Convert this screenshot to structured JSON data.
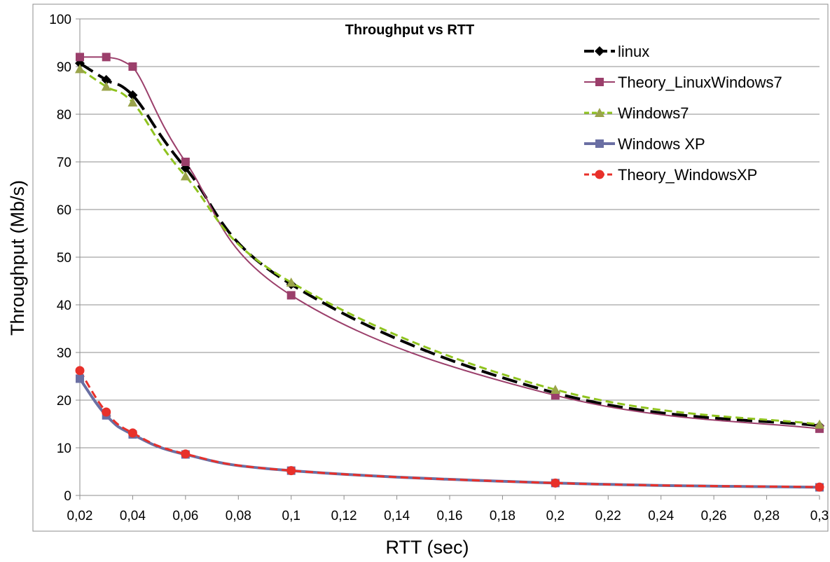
{
  "chart_data": {
    "type": "line",
    "title": "Throughput vs RTT",
    "xlabel": "RTT (sec)",
    "ylabel": "Throughput (Mb/s)",
    "xlim": [
      0.02,
      0.3
    ],
    "ylim": [
      0,
      100
    ],
    "x_ticks": [
      0.02,
      0.04,
      0.06,
      0.08,
      0.1,
      0.12,
      0.14,
      0.16,
      0.18,
      0.2,
      0.22,
      0.24,
      0.26,
      0.28,
      0.3
    ],
    "x_tick_labels": [
      "0,02",
      "0,04",
      "0,06",
      "0,08",
      "0,1",
      "0,12",
      "0,14",
      "0,16",
      "0,18",
      "0,2",
      "0,22",
      "0,24",
      "0,26",
      "0,28",
      "0,3"
    ],
    "y_ticks": [
      0,
      10,
      20,
      30,
      40,
      50,
      60,
      70,
      80,
      90,
      100
    ],
    "y_tick_labels": [
      "0",
      "10",
      "20",
      "30",
      "40",
      "50",
      "60",
      "70",
      "80",
      "90",
      "100"
    ],
    "grid": "horizontal",
    "legend_position": "top-right",
    "x": [
      0.02,
      0.03,
      0.04,
      0.06,
      0.1,
      0.2,
      0.3
    ],
    "series": [
      {
        "name": "linux",
        "values": [
          90.7,
          87.2,
          84.0,
          68.7,
          44.3,
          21.5,
          14.6
        ],
        "color": "#000000",
        "marker": "diamond",
        "dash": "long-dash",
        "width": 4
      },
      {
        "name": "Theory_LinuxWindows7",
        "values": [
          92.0,
          92.0,
          90.0,
          70.0,
          42.0,
          21.0,
          14.0
        ],
        "color": "#9b3f6b",
        "marker": "square",
        "dash": "solid",
        "width": 2
      },
      {
        "name": "Windows7",
        "values": [
          89.5,
          85.8,
          82.5,
          67.0,
          44.7,
          22.2,
          14.9
        ],
        "color": "#8fc31f",
        "marker": "triangle",
        "dash": "dash",
        "width": 3
      },
      {
        "name": "Windows XP",
        "values": [
          24.5,
          16.8,
          12.8,
          8.6,
          5.2,
          2.6,
          1.7
        ],
        "color": "#6a6fa3",
        "marker": "square",
        "dash": "solid",
        "width": 4
      },
      {
        "name": "Theory_WindowsXP",
        "values": [
          26.2,
          17.5,
          13.1,
          8.7,
          5.2,
          2.6,
          1.75
        ],
        "color": "#e8302a",
        "marker": "circle",
        "dash": "dash",
        "width": 3
      }
    ]
  }
}
